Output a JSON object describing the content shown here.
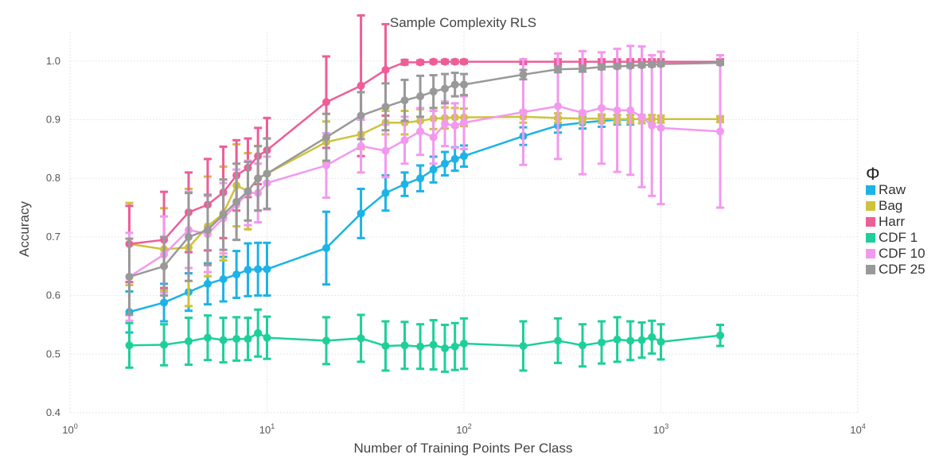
{
  "chart_data": {
    "type": "line",
    "title": "Sample Complexity RLS",
    "xlabel": "Number of Training Points Per Class",
    "ylabel": "Accuracy",
    "xscale": "log",
    "xlim": [
      1,
      10000
    ],
    "ylim": [
      0.4,
      1.05
    ],
    "xticks": [
      1,
      10,
      100,
      1000,
      10000
    ],
    "xtick_bases": [
      "10",
      "10",
      "10",
      "10",
      "10"
    ],
    "xtick_exps": [
      "0",
      "1",
      "2",
      "3",
      "4"
    ],
    "yticks": [
      0.4,
      0.5,
      0.6,
      0.7,
      0.8,
      0.9,
      1.0
    ],
    "ytick_labels": [
      "0.4",
      "0.5",
      "0.6",
      "0.7",
      "0.8",
      "0.9",
      "1.0"
    ],
    "grid": true,
    "legend": {
      "title": "Φ",
      "position": "right"
    },
    "series": [
      {
        "name": "Raw",
        "color": "#1cb3e6",
        "x": [
          2,
          3,
          4,
          5,
          6,
          7,
          8,
          9,
          10,
          20,
          30,
          40,
          50,
          60,
          70,
          80,
          90,
          100,
          200,
          300,
          400,
          500,
          600,
          700,
          800,
          900,
          1000,
          2000
        ],
        "y": [
          0.572,
          0.588,
          0.606,
          0.62,
          0.628,
          0.636,
          0.644,
          0.645,
          0.645,
          0.681,
          0.74,
          0.775,
          0.79,
          0.8,
          0.815,
          0.825,
          0.833,
          0.838,
          0.872,
          0.89,
          0.895,
          0.898,
          0.9,
          0.9,
          null,
          null,
          null,
          null
        ],
        "err": [
          0.035,
          0.032,
          0.032,
          0.035,
          0.038,
          0.04,
          0.045,
          0.045,
          0.045,
          0.062,
          0.042,
          0.03,
          0.02,
          0.022,
          0.022,
          0.02,
          0.02,
          0.018,
          0.015,
          0.012,
          0.01,
          0.01,
          0.008,
          0.008,
          null,
          null,
          null,
          null
        ]
      },
      {
        "name": "Bag",
        "color": "#cfc23c",
        "x": [
          2,
          3,
          4,
          5,
          6,
          7,
          8,
          9,
          10,
          20,
          30,
          40,
          50,
          60,
          70,
          80,
          90,
          100,
          200,
          300,
          400,
          500,
          600,
          700,
          800,
          900,
          1000,
          2000
        ],
        "y": [
          0.688,
          0.679,
          0.682,
          0.718,
          0.74,
          0.788,
          0.778,
          0.8,
          0.808,
          0.862,
          0.875,
          0.895,
          0.895,
          0.898,
          0.902,
          0.903,
          0.904,
          0.904,
          0.905,
          0.903,
          0.902,
          0.902,
          0.901,
          0.901,
          0.901,
          0.901,
          0.901,
          0.901
        ],
        "err": [
          0.07,
          0.07,
          0.1,
          0.085,
          0.08,
          0.07,
          0.065,
          0.055,
          0.06,
          0.035,
          0.025,
          0.02,
          0.02,
          0.02,
          0.018,
          0.018,
          0.016,
          0.015,
          0.01,
          0.008,
          0.008,
          0.007,
          0.007,
          0.007,
          0.007,
          0.007,
          0.006,
          0.005
        ]
      },
      {
        "name": "Harr",
        "color": "#ee5d98",
        "x": [
          2,
          3,
          4,
          5,
          6,
          7,
          8,
          9,
          10,
          20,
          30,
          40,
          50,
          60,
          70,
          80,
          90,
          100,
          200,
          300,
          400,
          500,
          600,
          700,
          800,
          900,
          1000,
          2000
        ],
        "y": [
          0.688,
          0.695,
          0.742,
          0.755,
          0.776,
          0.805,
          0.818,
          0.838,
          0.848,
          0.93,
          0.958,
          0.985,
          0.998,
          0.998,
          0.999,
          0.999,
          0.999,
          0.999,
          0.999,
          0.999,
          0.999,
          0.999,
          0.999,
          0.999,
          0.999,
          0.999,
          0.999,
          0.999
        ],
        "err": [
          0.065,
          0.082,
          0.068,
          0.078,
          0.078,
          0.06,
          0.05,
          0.048,
          0.055,
          0.078,
          0.12,
          0.078,
          0.004,
          0.003,
          0.003,
          0.003,
          0.003,
          0.003,
          0.004,
          0.004,
          0.004,
          0.004,
          0.004,
          0.004,
          0.004,
          0.004,
          0.004,
          0.004
        ]
      },
      {
        "name": "CDF 1",
        "color": "#1ecf9a",
        "x": [
          2,
          3,
          4,
          5,
          6,
          7,
          8,
          9,
          10,
          20,
          30,
          40,
          50,
          60,
          70,
          80,
          90,
          100,
          200,
          300,
          400,
          500,
          600,
          700,
          800,
          900,
          1000,
          2000
        ],
        "y": [
          0.515,
          0.516,
          0.522,
          0.528,
          0.524,
          0.526,
          0.526,
          0.536,
          0.528,
          0.523,
          0.527,
          0.514,
          0.515,
          0.513,
          0.516,
          0.51,
          0.513,
          0.518,
          0.514,
          0.523,
          0.515,
          0.52,
          0.525,
          0.523,
          0.524,
          0.529,
          0.521,
          0.532
        ],
        "err": [
          0.038,
          0.035,
          0.04,
          0.038,
          0.038,
          0.037,
          0.036,
          0.04,
          0.036,
          0.04,
          0.04,
          0.042,
          0.04,
          0.038,
          0.042,
          0.04,
          0.04,
          0.043,
          0.042,
          0.038,
          0.036,
          0.036,
          0.038,
          0.033,
          0.03,
          0.028,
          0.03,
          0.018
        ]
      },
      {
        "name": "CDF 10",
        "color": "#f299ef",
        "x": [
          2,
          3,
          4,
          5,
          6,
          7,
          8,
          9,
          10,
          20,
          30,
          40,
          50,
          60,
          70,
          80,
          90,
          100,
          200,
          300,
          400,
          500,
          600,
          700,
          800,
          900,
          1000,
          2000
        ],
        "y": [
          0.632,
          0.67,
          0.712,
          0.705,
          0.732,
          0.755,
          0.775,
          0.775,
          0.792,
          0.822,
          0.855,
          0.847,
          0.865,
          0.88,
          0.87,
          0.893,
          0.89,
          0.895,
          0.913,
          0.923,
          0.912,
          0.92,
          0.916,
          0.916,
          0.905,
          0.89,
          0.886,
          0.88
        ],
        "err": [
          0.075,
          0.065,
          0.065,
          0.065,
          0.06,
          0.06,
          0.055,
          0.05,
          0.045,
          0.055,
          0.045,
          0.045,
          0.04,
          0.04,
          0.045,
          0.038,
          0.038,
          0.045,
          0.09,
          0.09,
          0.105,
          0.095,
          0.105,
          0.11,
          0.12,
          0.12,
          0.13,
          0.13
        ]
      },
      {
        "name": "CDF 25",
        "color": "#999999",
        "x": [
          2,
          3,
          4,
          5,
          6,
          7,
          8,
          9,
          10,
          20,
          30,
          40,
          50,
          60,
          70,
          80,
          90,
          100,
          200,
          300,
          400,
          500,
          600,
          700,
          800,
          900,
          1000,
          2000
        ],
        "y": [
          0.632,
          0.65,
          0.7,
          0.712,
          0.738,
          0.76,
          0.778,
          0.8,
          0.808,
          0.87,
          0.907,
          0.922,
          0.933,
          0.94,
          0.948,
          0.953,
          0.96,
          0.96,
          0.977,
          0.986,
          0.987,
          0.99,
          0.991,
          0.992,
          0.993,
          0.994,
          0.995,
          0.997
        ],
        "err": [
          0.065,
          0.05,
          0.075,
          0.06,
          0.06,
          0.065,
          0.05,
          0.055,
          0.06,
          0.04,
          0.04,
          0.04,
          0.035,
          0.035,
          0.028,
          0.025,
          0.02,
          0.018,
          0.008,
          0.005,
          0.005,
          0.004,
          0.003,
          0.003,
          0.003,
          0.003,
          0.003,
          0.003
        ]
      }
    ]
  }
}
